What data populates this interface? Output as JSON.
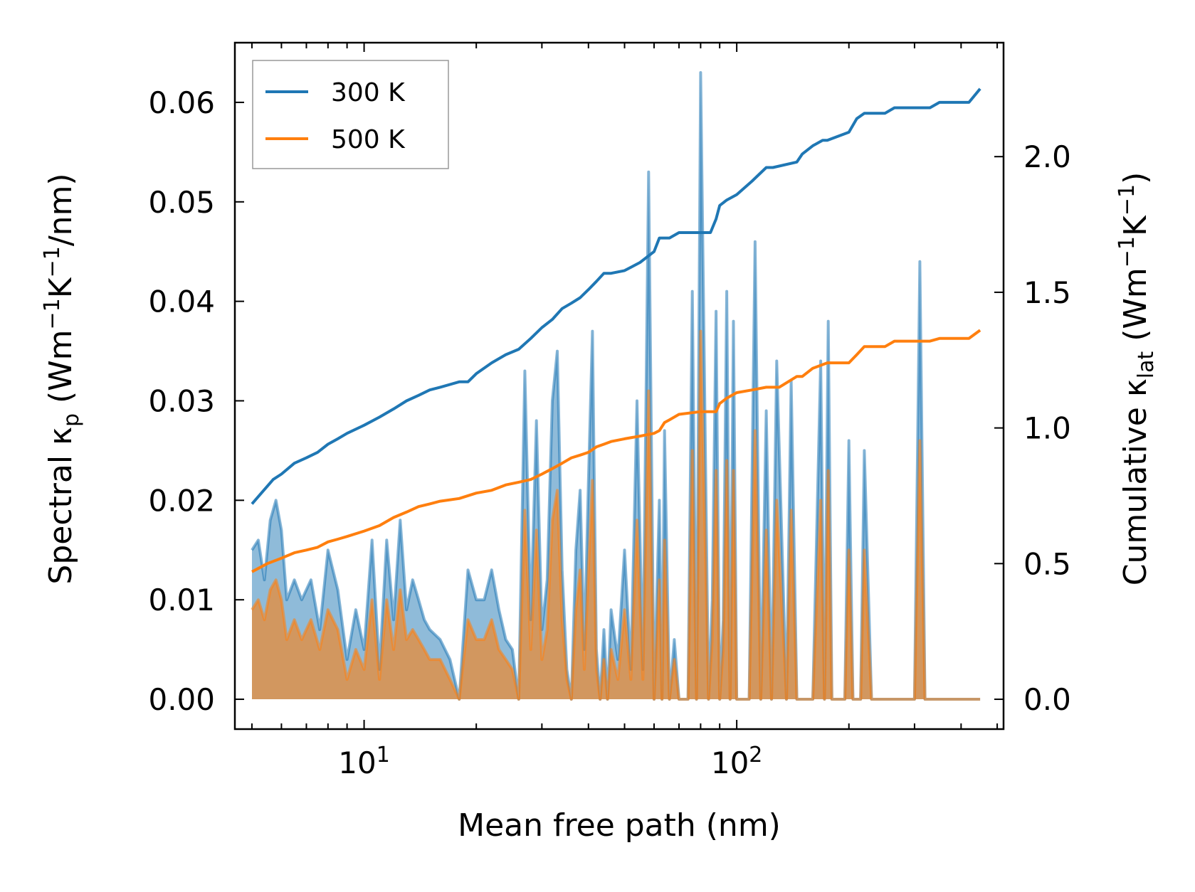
{
  "chart_data": {
    "type": "line",
    "title": "",
    "xlabel": "Mean free path (nm)",
    "xscale": "log",
    "xlim": [
      4.5,
      520
    ],
    "ylabel_left": {
      "main": "Spectral κ",
      "sub": "p",
      "unit_pre": " (Wm",
      "exp1": "−1",
      "mid": "K",
      "exp2": "−1",
      "unit_post": "/nm)"
    },
    "ylabel_right": {
      "main": "Cumulative κ",
      "sub": "lat",
      "unit_pre": " (Wm",
      "exp1": "−1",
      "mid": "K",
      "exp2": "−1",
      "unit_post": ")"
    },
    "ylim_left": [
      -0.003,
      0.066
    ],
    "ylim_right": [
      -0.11,
      2.42
    ],
    "x_ticks": [
      {
        "value": 10,
        "base": "10",
        "exp": "1"
      },
      {
        "value": 100,
        "base": "10",
        "exp": "2"
      }
    ],
    "y_left_ticks": [
      "0.00",
      "0.01",
      "0.02",
      "0.03",
      "0.04",
      "0.05",
      "0.06"
    ],
    "y_right_ticks": [
      "0.0",
      "0.5",
      "1.0",
      "1.5",
      "2.0"
    ],
    "legend": {
      "position": "top-left",
      "entries": [
        {
          "label": "300 K",
          "color": "#1f77b4"
        },
        {
          "label": "500 K",
          "color": "#ff7f0e"
        }
      ]
    },
    "series": [
      {
        "name": "300 K",
        "color": "#1f77b4",
        "cumulative_right_axis": {
          "x": [
            5.0,
            5.3,
            5.7,
            6.0,
            6.5,
            7.0,
            7.5,
            8.0,
            8.5,
            9.0,
            10.0,
            11.0,
            12.0,
            13.0,
            14.0,
            15.0,
            16.0,
            18.0,
            19.0,
            20.0,
            22.0,
            24.0,
            26.0,
            28.0,
            30.0,
            32.0,
            34.0,
            36.0,
            38.0,
            40.0,
            42.0,
            44.0,
            46.0,
            50.0,
            55.0,
            60.0,
            62.0,
            64.0,
            66.0,
            70.0,
            75.0,
            85.0,
            88.0,
            90.0,
            94.0,
            100.0,
            110.0,
            120.0,
            125.0,
            145.0,
            150.0,
            160.0,
            170.0,
            175.0,
            200.0,
            210.0,
            220.0,
            250.0,
            265.0,
            330.0,
            350.0,
            400.0,
            420.0,
            450.0
          ],
          "y": [
            0.72,
            0.76,
            0.81,
            0.83,
            0.87,
            0.89,
            0.91,
            0.94,
            0.96,
            0.98,
            1.01,
            1.04,
            1.07,
            1.1,
            1.12,
            1.14,
            1.15,
            1.17,
            1.17,
            1.2,
            1.24,
            1.27,
            1.29,
            1.33,
            1.37,
            1.4,
            1.44,
            1.46,
            1.48,
            1.51,
            1.54,
            1.57,
            1.57,
            1.58,
            1.61,
            1.65,
            1.7,
            1.7,
            1.7,
            1.72,
            1.72,
            1.72,
            1.77,
            1.82,
            1.84,
            1.86,
            1.91,
            1.96,
            1.96,
            1.98,
            2.01,
            2.04,
            2.06,
            2.06,
            2.09,
            2.14,
            2.16,
            2.16,
            2.18,
            2.18,
            2.2,
            2.2,
            2.2,
            2.25
          ]
        },
        "spectral_left_axis": {
          "x": [
            5.0,
            5.2,
            5.4,
            5.6,
            5.8,
            6.0,
            6.2,
            6.5,
            6.8,
            7.2,
            7.6,
            8.0,
            8.5,
            9.0,
            9.5,
            10.0,
            10.5,
            11.0,
            11.5,
            12.0,
            12.5,
            13.0,
            13.5,
            14.0,
            14.5,
            15.0,
            16.0,
            17.0,
            18.0,
            19.0,
            20.0,
            21.0,
            22.0,
            23.0,
            24.0,
            25.0,
            26.0,
            27.0,
            28.0,
            29.0,
            30.0,
            31.0,
            32.0,
            33.0,
            34.0,
            35.0,
            36.0,
            37.0,
            38.0,
            39.0,
            40.0,
            41.0,
            42.0,
            43.0,
            44.0,
            45.0,
            46.0,
            48.0,
            50.0,
            52.0,
            54.0,
            56.0,
            58.0,
            60.0,
            62.0,
            63.0,
            64.0,
            66.0,
            68.0,
            70.0,
            72.0,
            74.0,
            76.0,
            78.0,
            80.0,
            84.0,
            86.0,
            88.0,
            90.0,
            92.0,
            94.0,
            96.0,
            98.0,
            100.0,
            104.0,
            108.0,
            112.0,
            116.0,
            120.0,
            124.0,
            128.0,
            136.0,
            140.0,
            145.0,
            150.0,
            160.0,
            168.0,
            172.0,
            176.0,
            180.0,
            195.0,
            200.0,
            205.0,
            210.0,
            215.0,
            220.0,
            230.0,
            240.0,
            250.0,
            260.0,
            270.0,
            300.0,
            310.0,
            320.0,
            330.0,
            340.0,
            400.0,
            420.0,
            430.0,
            440.0,
            450.0
          ],
          "y": [
            0.015,
            0.016,
            0.012,
            0.018,
            0.02,
            0.017,
            0.01,
            0.012,
            0.01,
            0.012,
            0.007,
            0.015,
            0.011,
            0.004,
            0.009,
            0.005,
            0.016,
            0.003,
            0.016,
            0.008,
            0.018,
            0.009,
            0.012,
            0.01,
            0.008,
            0.007,
            0.006,
            0.004,
            0.0,
            0.013,
            0.01,
            0.01,
            0.013,
            0.009,
            0.006,
            0.005,
            0.0,
            0.033,
            0.008,
            0.028,
            0.007,
            0.012,
            0.03,
            0.035,
            0.013,
            0.003,
            0.0,
            0.015,
            0.021,
            0.005,
            0.022,
            0.037,
            0.005,
            0.0,
            0.007,
            0.0,
            0.009,
            0.004,
            0.015,
            0.003,
            0.03,
            0.003,
            0.053,
            0.0,
            0.02,
            0.0,
            0.027,
            0.0,
            0.006,
            0.0,
            0.0,
            0.0,
            0.041,
            0.0,
            0.063,
            0.0,
            0.01,
            0.039,
            0.0,
            0.008,
            0.041,
            0.0,
            0.038,
            0.0,
            0.0,
            0.0,
            0.046,
            0.0,
            0.029,
            0.0,
            0.034,
            0.0,
            0.032,
            0.0,
            0.0,
            0.0,
            0.034,
            0.0,
            0.038,
            0.0,
            0.0,
            0.026,
            0.0,
            0.0,
            0.0,
            0.025,
            0.0,
            0.0,
            0.0,
            0.0,
            0.0,
            0.0,
            0.044,
            0.0,
            0.0,
            0.0,
            0.0,
            0.0,
            0.0,
            0.0,
            0.0
          ]
        }
      },
      {
        "name": "500 K",
        "color": "#ff7f0e",
        "cumulative_right_axis": {
          "x": [
            5.0,
            5.5,
            6.0,
            6.5,
            7.0,
            7.5,
            8.0,
            8.5,
            9.0,
            10.0,
            11.0,
            12.0,
            13.0,
            14.0,
            15.0,
            16.0,
            18.0,
            20.0,
            22.0,
            24.0,
            26.0,
            28.0,
            30.0,
            32.0,
            34.0,
            36.0,
            38.0,
            40.0,
            42.0,
            44.0,
            46.0,
            50.0,
            55.0,
            60.0,
            62.0,
            64.0,
            66.0,
            70.0,
            80.0,
            88.0,
            90.0,
            94.0,
            100.0,
            110.0,
            120.0,
            130.0,
            145.0,
            150.0,
            160.0,
            175.0,
            200.0,
            210.0,
            220.0,
            250.0,
            265.0,
            330.0,
            350.0,
            400.0,
            420.0,
            450.0
          ],
          "y": [
            0.47,
            0.5,
            0.52,
            0.54,
            0.55,
            0.56,
            0.58,
            0.59,
            0.6,
            0.62,
            0.64,
            0.67,
            0.69,
            0.71,
            0.72,
            0.73,
            0.74,
            0.76,
            0.77,
            0.79,
            0.8,
            0.81,
            0.83,
            0.85,
            0.87,
            0.89,
            0.9,
            0.91,
            0.93,
            0.94,
            0.95,
            0.96,
            0.97,
            0.98,
            0.99,
            1.02,
            1.03,
            1.05,
            1.06,
            1.06,
            1.09,
            1.11,
            1.13,
            1.14,
            1.15,
            1.15,
            1.19,
            1.19,
            1.22,
            1.24,
            1.24,
            1.27,
            1.3,
            1.3,
            1.32,
            1.32,
            1.33,
            1.33,
            1.33,
            1.36
          ]
        },
        "spectral_left_axis": {
          "x": [
            5.0,
            5.2,
            5.4,
            5.6,
            5.8,
            6.0,
            6.2,
            6.5,
            6.8,
            7.2,
            7.6,
            8.0,
            8.5,
            9.0,
            9.5,
            10.0,
            10.5,
            11.0,
            11.5,
            12.0,
            12.5,
            13.0,
            13.5,
            14.0,
            14.5,
            15.0,
            16.0,
            17.0,
            18.0,
            19.0,
            20.0,
            21.0,
            22.0,
            23.0,
            24.0,
            25.0,
            26.0,
            27.0,
            28.0,
            29.0,
            30.0,
            31.0,
            32.0,
            33.0,
            34.0,
            35.0,
            36.0,
            37.0,
            38.0,
            39.0,
            40.0,
            41.0,
            42.0,
            43.0,
            44.0,
            45.0,
            46.0,
            48.0,
            50.0,
            52.0,
            54.0,
            56.0,
            58.0,
            60.0,
            62.0,
            63.0,
            64.0,
            66.0,
            68.0,
            70.0,
            72.0,
            74.0,
            76.0,
            78.0,
            80.0,
            84.0,
            86.0,
            88.0,
            90.0,
            92.0,
            94.0,
            96.0,
            98.0,
            100.0,
            104.0,
            108.0,
            112.0,
            116.0,
            120.0,
            124.0,
            128.0,
            136.0,
            140.0,
            145.0,
            150.0,
            160.0,
            168.0,
            172.0,
            176.0,
            180.0,
            195.0,
            200.0,
            205.0,
            210.0,
            215.0,
            220.0,
            230.0,
            240.0,
            250.0,
            260.0,
            270.0,
            300.0,
            310.0,
            320.0,
            330.0,
            340.0,
            400.0,
            420.0,
            430.0,
            440.0,
            450.0
          ],
          "y": [
            0.009,
            0.01,
            0.008,
            0.011,
            0.012,
            0.01,
            0.006,
            0.008,
            0.006,
            0.008,
            0.005,
            0.009,
            0.007,
            0.002,
            0.005,
            0.003,
            0.01,
            0.002,
            0.01,
            0.005,
            0.011,
            0.006,
            0.007,
            0.006,
            0.005,
            0.004,
            0.004,
            0.002,
            0.0,
            0.008,
            0.006,
            0.006,
            0.008,
            0.005,
            0.004,
            0.003,
            0.0,
            0.019,
            0.005,
            0.017,
            0.004,
            0.007,
            0.018,
            0.021,
            0.008,
            0.002,
            0.0,
            0.009,
            0.013,
            0.003,
            0.013,
            0.022,
            0.003,
            0.0,
            0.004,
            0.0,
            0.005,
            0.002,
            0.009,
            0.002,
            0.018,
            0.002,
            0.031,
            0.0,
            0.012,
            0.0,
            0.016,
            0.0,
            0.004,
            0.0,
            0.0,
            0.0,
            0.025,
            0.0,
            0.037,
            0.0,
            0.006,
            0.023,
            0.0,
            0.005,
            0.024,
            0.0,
            0.023,
            0.0,
            0.0,
            0.0,
            0.027,
            0.0,
            0.017,
            0.0,
            0.02,
            0.0,
            0.019,
            0.0,
            0.0,
            0.0,
            0.02,
            0.0,
            0.023,
            0.0,
            0.0,
            0.015,
            0.0,
            0.0,
            0.0,
            0.015,
            0.0,
            0.0,
            0.0,
            0.0,
            0.0,
            0.0,
            0.026,
            0.0,
            0.0,
            0.0,
            0.0,
            0.0,
            0.0,
            0.0,
            0.0
          ]
        }
      }
    ]
  }
}
